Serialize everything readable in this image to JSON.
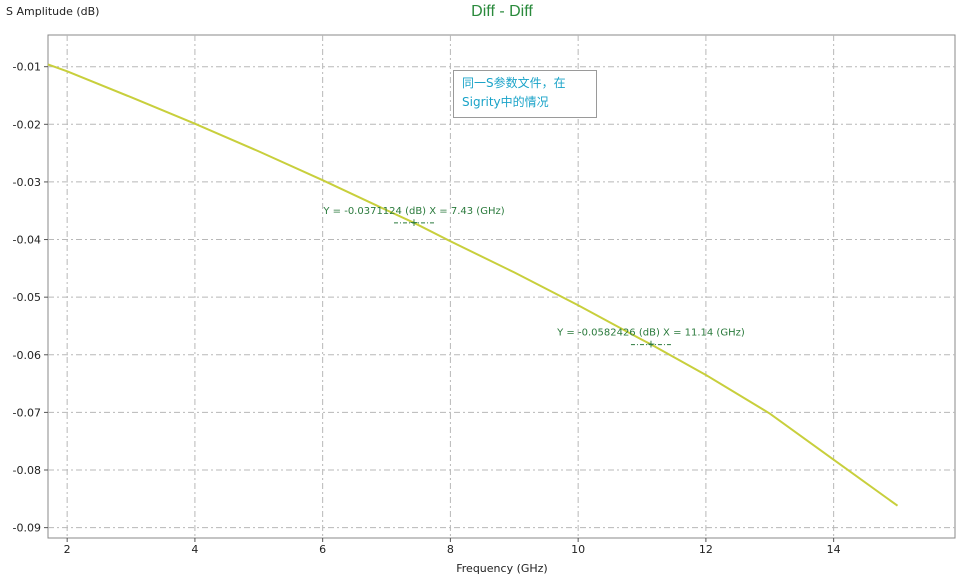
{
  "chart_data": {
    "type": "line",
    "title": "Diff - Diff",
    "xlabel": "Frequency (GHz)",
    "ylabel": "S Amplitude (dB)",
    "xlim": [
      1.7,
      15.9
    ],
    "ylim": [
      -0.0918,
      -0.0045
    ],
    "x_ticks": [
      2,
      4,
      6,
      8,
      10,
      12,
      14
    ],
    "y_ticks": [
      -0.01,
      -0.02,
      -0.03,
      -0.04,
      -0.05,
      -0.06,
      -0.07,
      -0.08,
      -0.09
    ],
    "x_tick_labels": [
      "2",
      "4",
      "6",
      "8",
      "10",
      "12",
      "14"
    ],
    "y_tick_labels": [
      "-0.01",
      "-0.02",
      "-0.03",
      "-0.04",
      "-0.05",
      "-0.06",
      "-0.07",
      "-0.08",
      "-0.09"
    ],
    "grid": true,
    "series": [
      {
        "color": "#c8cf3c",
        "x": [
          1.7,
          2,
          3,
          4,
          5,
          6,
          7,
          7.43,
          8,
          9,
          10,
          11,
          11.14,
          12,
          13,
          14,
          15
        ],
        "y": [
          -0.0096,
          -0.0108,
          -0.0153,
          -0.0199,
          -0.0247,
          -0.0297,
          -0.0349,
          -0.0371,
          -0.0403,
          -0.0457,
          -0.0514,
          -0.0574,
          -0.0582,
          -0.0635,
          -0.0702,
          -0.0782,
          -0.0862
        ]
      }
    ],
    "markers": [
      {
        "x": 7.43,
        "y": -0.0371124,
        "label": "Y = -0.0371124 (dB)  X = 7.43 (GHz)"
      },
      {
        "x": 11.14,
        "y": -0.0582426,
        "label": "Y = -0.0582426 (dB)  X = 11.14 (GHz)"
      }
    ],
    "annotation": {
      "line1": "同一S参数文件，在",
      "line2": "Sigrity中的情况"
    },
    "colors": {
      "title": "#2a8a3c",
      "line": "#c8cf3c",
      "marker": "#2a7a3c",
      "annotation": "#1aa3c8",
      "grid": "#b8b8b8"
    }
  }
}
